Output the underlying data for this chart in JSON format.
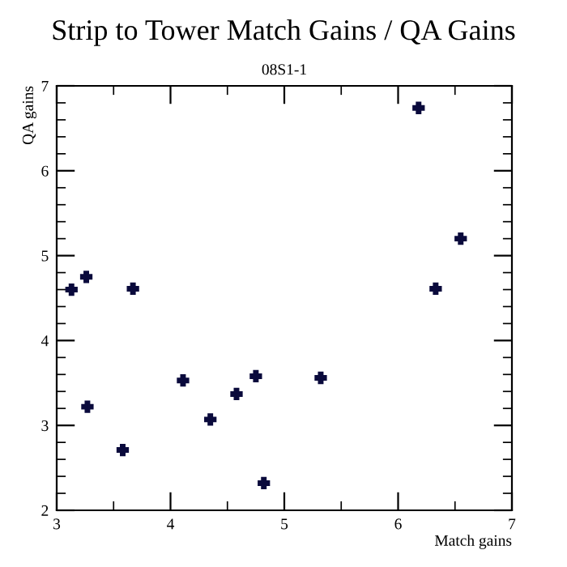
{
  "chart_data": {
    "type": "scatter",
    "title": "Strip to Tower Match Gains / QA Gains",
    "subtitle": "08S1-1",
    "xlabel": "Match gains",
    "ylabel": "QA gains",
    "x": [
      3.13,
      3.26,
      3.27,
      3.67,
      3.58,
      4.11,
      4.35,
      4.58,
      4.75,
      4.82,
      5.32,
      6.18,
      6.33,
      6.55
    ],
    "series": [
      {
        "color": "#0a0a3c",
        "values": [
          4.6,
          4.75,
          3.22,
          4.61,
          2.71,
          3.53,
          3.07,
          3.37,
          3.58,
          2.32,
          3.56,
          6.74,
          4.61,
          5.2
        ]
      }
    ],
    "xlim": [
      3,
      7
    ],
    "ylim": [
      2,
      7
    ],
    "xticks": [
      3,
      4,
      5,
      6,
      7
    ],
    "yticks": [
      2,
      3,
      4,
      5,
      6,
      7
    ],
    "grid": false,
    "marker": "cross",
    "legend": false
  }
}
